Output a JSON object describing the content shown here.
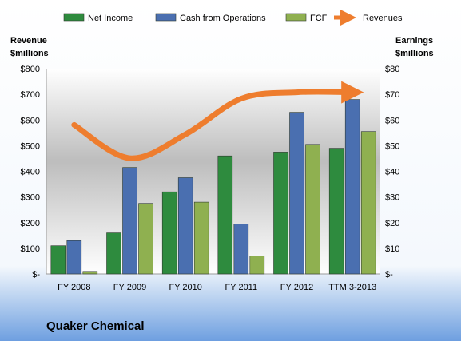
{
  "chart_data": {
    "type": "bar",
    "title": "Quaker Chemical",
    "categories": [
      "FY 2008",
      "FY 2009",
      "FY 2010",
      "FY 2011",
      "FY 2012",
      "TTM 3-2013"
    ],
    "left_axis": {
      "label_lines": [
        "Revenue",
        "$millions"
      ],
      "ylim": [
        0,
        800
      ],
      "ticks": [
        "$-",
        "$100",
        "$200",
        "$300",
        "$400",
        "$500",
        "$600",
        "$700",
        "$800"
      ]
    },
    "right_axis": {
      "label_lines": [
        "Earnings",
        "$millions"
      ],
      "ylim": [
        0,
        80
      ],
      "ticks": [
        "$-",
        "$10",
        "$20",
        "$30",
        "$40",
        "$50",
        "$60",
        "$70",
        "$80"
      ]
    },
    "series": [
      {
        "name": "Net Income",
        "type": "bar",
        "axis": "right",
        "color": "#2e8b3e",
        "values": [
          11,
          16,
          32,
          46,
          47.5,
          49
        ]
      },
      {
        "name": "Cash from Operations",
        "type": "bar",
        "axis": "right",
        "color": "#4a6fb0",
        "values": [
          13,
          41.5,
          37.5,
          19.5,
          63,
          68
        ]
      },
      {
        "name": "FCF",
        "type": "bar",
        "axis": "right",
        "color": "#8fb050",
        "values": [
          1,
          27.5,
          28,
          7,
          50.5,
          55.5
        ]
      },
      {
        "name": "Revenues",
        "type": "line",
        "axis": "left",
        "color": "#ee7d2e",
        "values": [
          581,
          451,
          544,
          683,
          708,
          708
        ]
      }
    ],
    "legend_position": "top",
    "grid": false
  }
}
